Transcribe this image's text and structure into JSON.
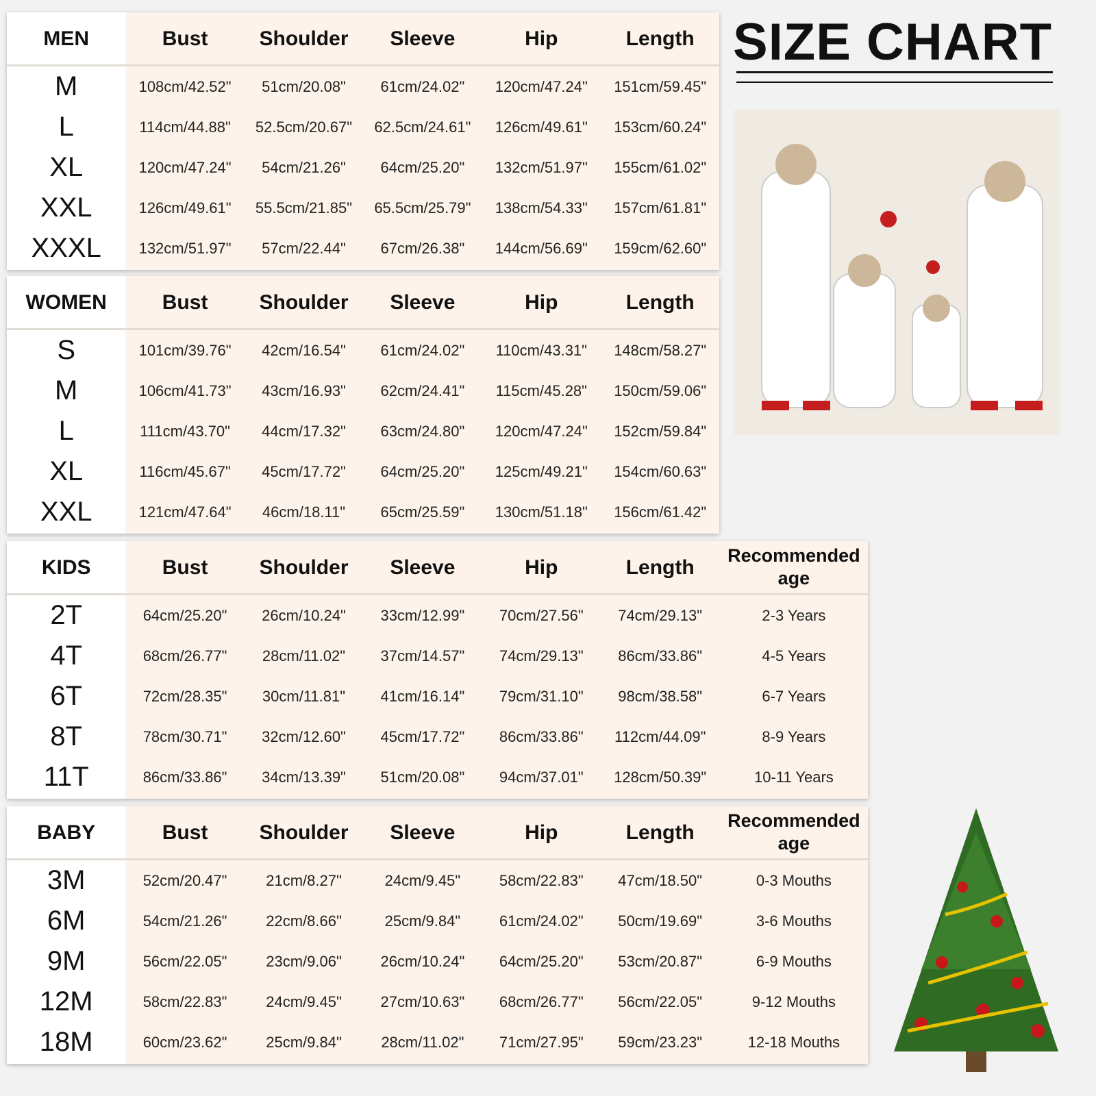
{
  "title": "SIZE CHART",
  "tables": [
    {
      "header": [
        "MEN",
        "Bust",
        "Shoulder",
        "Sleeve",
        "Hip",
        "Length"
      ],
      "rows": [
        [
          "M",
          "108cm/42.52\"",
          "51cm/20.08\"",
          "61cm/24.02\"",
          "120cm/47.24\"",
          "151cm/59.45\""
        ],
        [
          "L",
          "114cm/44.88\"",
          "52.5cm/20.67\"",
          "62.5cm/24.61\"",
          "126cm/49.61\"",
          "153cm/60.24\""
        ],
        [
          "XL",
          "120cm/47.24\"",
          "54cm/21.26\"",
          "64cm/25.20\"",
          "132cm/51.97\"",
          "155cm/61.02\""
        ],
        [
          "XXL",
          "126cm/49.61\"",
          "55.5cm/21.85\"",
          "65.5cm/25.79\"",
          "138cm/54.33\"",
          "157cm/61.81\""
        ],
        [
          "XXXL",
          "132cm/51.97\"",
          "57cm/22.44\"",
          "67cm/26.38\"",
          "144cm/56.69\"",
          "159cm/62.60\""
        ]
      ]
    },
    {
      "header": [
        "WOMEN",
        "Bust",
        "Shoulder",
        "Sleeve",
        "Hip",
        "Length"
      ],
      "rows": [
        [
          "S",
          "101cm/39.76\"",
          "42cm/16.54\"",
          "61cm/24.02\"",
          "110cm/43.31\"",
          "148cm/58.27\""
        ],
        [
          "M",
          "106cm/41.73\"",
          "43cm/16.93\"",
          "62cm/24.41\"",
          "115cm/45.28\"",
          "150cm/59.06\""
        ],
        [
          "L",
          "111cm/43.70\"",
          "44cm/17.32\"",
          "63cm/24.80\"",
          "120cm/47.24\"",
          "152cm/59.84\""
        ],
        [
          "XL",
          "116cm/45.67\"",
          "45cm/17.72\"",
          "64cm/25.20\"",
          "125cm/49.21\"",
          "154cm/60.63\""
        ],
        [
          "XXL",
          "121cm/47.64\"",
          "46cm/18.11\"",
          "65cm/25.59\"",
          "130cm/51.18\"",
          "156cm/61.42\""
        ]
      ]
    },
    {
      "header": [
        "KIDS",
        "Bust",
        "Shoulder",
        "Sleeve",
        "Hip",
        "Length",
        "Recommended age"
      ],
      "rows": [
        [
          "2T",
          "64cm/25.20\"",
          "26cm/10.24\"",
          "33cm/12.99\"",
          "70cm/27.56\"",
          "74cm/29.13\"",
          "2-3 Years"
        ],
        [
          "4T",
          "68cm/26.77\"",
          "28cm/11.02\"",
          "37cm/14.57\"",
          "74cm/29.13\"",
          "86cm/33.86\"",
          "4-5 Years"
        ],
        [
          "6T",
          "72cm/28.35\"",
          "30cm/11.81\"",
          "41cm/16.14\"",
          "79cm/31.10\"",
          "98cm/38.58\"",
          "6-7 Years"
        ],
        [
          "8T",
          "78cm/30.71\"",
          "32cm/12.60\"",
          "45cm/17.72\"",
          "86cm/33.86\"",
          "112cm/44.09\"",
          "8-9 Years"
        ],
        [
          "11T",
          "86cm/33.86\"",
          "34cm/13.39\"",
          "51cm/20.08\"",
          "94cm/37.01\"",
          "128cm/50.39\"",
          "10-11 Years"
        ]
      ]
    },
    {
      "header": [
        "BABY",
        "Bust",
        "Shoulder",
        "Sleeve",
        "Hip",
        "Length",
        "Recommended age"
      ],
      "rows": [
        [
          "3M",
          "52cm/20.47\"",
          "21cm/8.27\"",
          "24cm/9.45\"",
          "58cm/22.83\"",
          "47cm/18.50\"",
          "0-3 Mouths"
        ],
        [
          "6M",
          "54cm/21.26\"",
          "22cm/8.66\"",
          "25cm/9.84\"",
          "61cm/24.02\"",
          "50cm/19.69\"",
          "3-6 Mouths"
        ],
        [
          "9M",
          "56cm/22.05\"",
          "23cm/9.06\"",
          "26cm/10.24\"",
          "64cm/25.20\"",
          "53cm/20.87\"",
          "6-9 Mouths"
        ],
        [
          "12M",
          "58cm/22.83\"",
          "24cm/9.45\"",
          "27cm/10.63\"",
          "68cm/26.77\"",
          "56cm/22.05\"",
          "9-12 Mouths"
        ],
        [
          "18M",
          "60cm/23.62\"",
          "25cm/9.84\"",
          "28cm/11.02\"",
          "71cm/27.95\"",
          "59cm/23.23\"",
          "12-18 Mouths"
        ]
      ]
    }
  ]
}
